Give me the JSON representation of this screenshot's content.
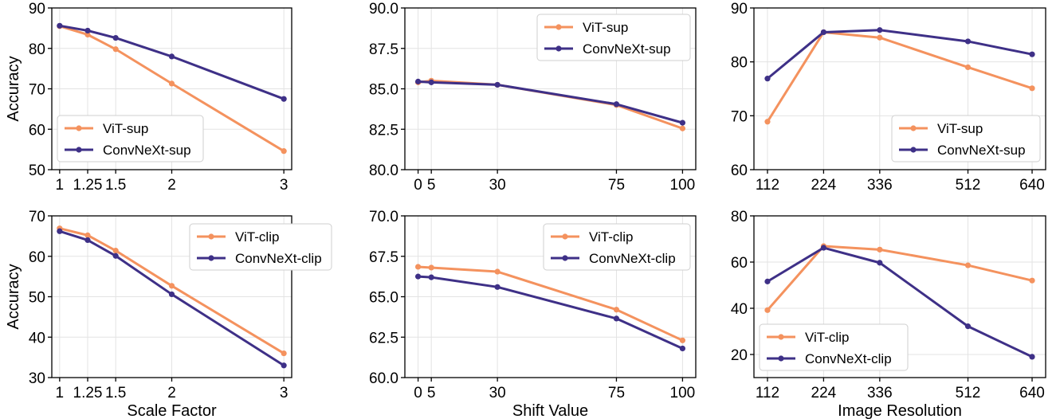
{
  "colors": {
    "vit": "#F4925E",
    "convnext": "#3E3087",
    "grid": "#e3e3e3",
    "axis": "#000000"
  },
  "chart_data": [
    {
      "type": "line",
      "xlabel": "",
      "ylabel": "Accuracy",
      "x": [
        1,
        1.25,
        1.5,
        2,
        3
      ],
      "xticks": [
        1,
        1.25,
        1.5,
        2,
        3
      ],
      "xtick_labels": [
        "1",
        "1.25",
        "1.5",
        "2",
        "3"
      ],
      "xlim": [
        0.93,
        3.07
      ],
      "ylim": [
        50,
        90
      ],
      "yticks": [
        50,
        60,
        70,
        80,
        90
      ],
      "ytick_labels": [
        "50",
        "60",
        "70",
        "80",
        "90"
      ],
      "legend_position": "lower-left",
      "grid": true,
      "series": [
        {
          "name": "ViT-sup",
          "color": "#F4925E",
          "values": [
            85.5,
            83.4,
            79.8,
            71.3,
            54.6
          ]
        },
        {
          "name": "ConvNeXt-sup",
          "color": "#3E3087",
          "values": [
            85.6,
            84.4,
            82.6,
            78.0,
            67.5
          ]
        }
      ]
    },
    {
      "type": "line",
      "xlabel": "",
      "ylabel": "",
      "x": [
        0,
        5,
        30,
        75,
        100
      ],
      "xticks": [
        0,
        5,
        30,
        75,
        100
      ],
      "xtick_labels": [
        "0",
        "5",
        "30",
        "75",
        "100"
      ],
      "xlim": [
        -5,
        105
      ],
      "ylim": [
        80,
        90
      ],
      "yticks": [
        80,
        82.5,
        85,
        87.5,
        90
      ],
      "ytick_labels": [
        "80.0",
        "82.5",
        "85.0",
        "87.5",
        "90.0"
      ],
      "legend_position": "top-right",
      "grid": true,
      "series": [
        {
          "name": "ViT-sup",
          "color": "#F4925E",
          "values": [
            85.4,
            85.5,
            85.25,
            84.0,
            82.55
          ]
        },
        {
          "name": "ConvNeXt-sup",
          "color": "#3E3087",
          "values": [
            85.45,
            85.4,
            85.25,
            84.05,
            82.9
          ]
        }
      ]
    },
    {
      "type": "line",
      "xlabel": "",
      "ylabel": "",
      "x": [
        112,
        224,
        336,
        512,
        640
      ],
      "xticks": [
        112,
        224,
        336,
        512,
        640
      ],
      "xtick_labels": [
        "112",
        "224",
        "336",
        "512",
        "640"
      ],
      "xlim": [
        85,
        667
      ],
      "ylim": [
        60,
        90
      ],
      "yticks": [
        60,
        70,
        80,
        90
      ],
      "ytick_labels": [
        "60",
        "70",
        "80",
        "90"
      ],
      "legend_position": "lower-right",
      "grid": true,
      "series": [
        {
          "name": "ViT-sup",
          "color": "#F4925E",
          "values": [
            68.9,
            85.5,
            84.5,
            79.0,
            75.1
          ]
        },
        {
          "name": "ConvNeXt-sup",
          "color": "#3E3087",
          "values": [
            76.9,
            85.5,
            85.9,
            83.8,
            81.4
          ]
        }
      ]
    },
    {
      "type": "line",
      "xlabel": "Scale Factor",
      "ylabel": "Accuracy",
      "x": [
        1,
        1.25,
        1.5,
        2,
        3
      ],
      "xticks": [
        1,
        1.25,
        1.5,
        2,
        3
      ],
      "xtick_labels": [
        "1",
        "1.25",
        "1.5",
        "2",
        "3"
      ],
      "xlim": [
        0.93,
        3.07
      ],
      "ylim": [
        30,
        70
      ],
      "yticks": [
        30,
        40,
        50,
        60,
        70
      ],
      "ytick_labels": [
        "30",
        "40",
        "50",
        "60",
        "70"
      ],
      "legend_position": "top-right",
      "grid": true,
      "series": [
        {
          "name": "ViT-clip",
          "color": "#F4925E",
          "values": [
            66.9,
            65.2,
            61.4,
            52.7,
            36.0
          ]
        },
        {
          "name": "ConvNeXt-clip",
          "color": "#3E3087",
          "values": [
            66.2,
            64.0,
            60.1,
            50.6,
            33.0
          ]
        }
      ]
    },
    {
      "type": "line",
      "xlabel": "Shift Value",
      "ylabel": "",
      "x": [
        0,
        5,
        30,
        75,
        100
      ],
      "xticks": [
        0,
        5,
        30,
        75,
        100
      ],
      "xtick_labels": [
        "0",
        "5",
        "30",
        "75",
        "100"
      ],
      "xlim": [
        -5,
        105
      ],
      "ylim": [
        60,
        70
      ],
      "yticks": [
        60,
        62.5,
        65,
        67.5,
        70
      ],
      "ytick_labels": [
        "60.0",
        "62.5",
        "65.0",
        "67.5",
        "70.0"
      ],
      "legend_position": "top-right",
      "grid": true,
      "series": [
        {
          "name": "ViT-clip",
          "color": "#F4925E",
          "values": [
            66.85,
            66.8,
            66.55,
            64.2,
            62.3
          ]
        },
        {
          "name": "ConvNeXt-clip",
          "color": "#3E3087",
          "values": [
            66.25,
            66.2,
            65.6,
            63.65,
            61.8
          ]
        }
      ]
    },
    {
      "type": "line",
      "xlabel": "Image Resolution",
      "ylabel": "",
      "x": [
        112,
        224,
        336,
        512,
        640
      ],
      "xticks": [
        112,
        224,
        336,
        512,
        640
      ],
      "xtick_labels": [
        "112",
        "224",
        "336",
        "512",
        "640"
      ],
      "xlim": [
        85,
        667
      ],
      "ylim": [
        10,
        80
      ],
      "yticks": [
        20,
        40,
        60,
        80
      ],
      "ytick_labels": [
        "20",
        "40",
        "60",
        "80"
      ],
      "legend_position": "lower-left",
      "grid": true,
      "series": [
        {
          "name": "ViT-clip",
          "color": "#F4925E",
          "values": [
            39.2,
            66.9,
            65.4,
            58.6,
            52.0
          ]
        },
        {
          "name": "ConvNeXt-clip",
          "color": "#3E3087",
          "values": [
            51.6,
            66.2,
            59.7,
            32.2,
            19.0
          ]
        }
      ]
    }
  ]
}
